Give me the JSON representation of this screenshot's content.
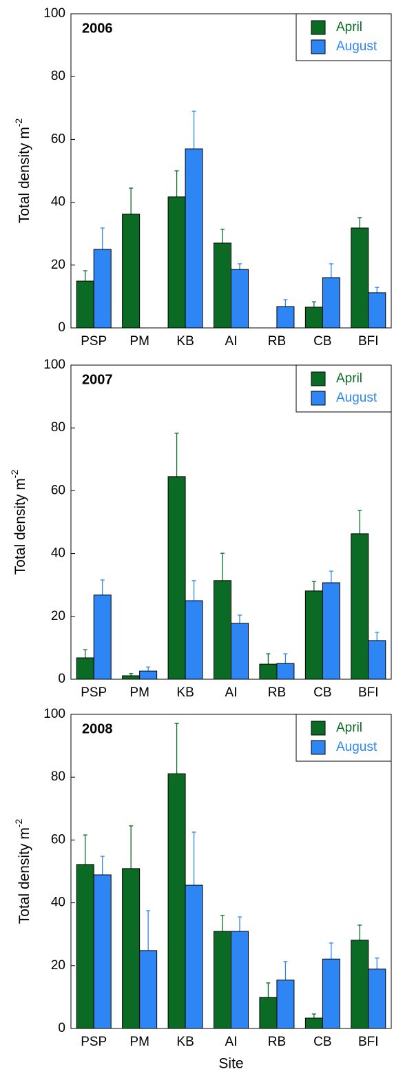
{
  "chart_data": [
    {
      "type": "bar",
      "title": "2006",
      "categories": [
        "PSP",
        "PM",
        "KB",
        "AI",
        "RB",
        "CB",
        "BFI"
      ],
      "series": [
        {
          "name": "April",
          "color": "#0b6b25",
          "values": [
            14.9,
            36.2,
            41.7,
            27,
            null,
            6.6,
            31.8
          ],
          "errors": [
            3.3,
            8.3,
            8.3,
            4.4,
            null,
            1.7,
            3.3
          ]
        },
        {
          "name": "August",
          "color": "#2e86f5",
          "values": [
            25,
            null,
            57,
            18.6,
            6.8,
            16,
            11.2
          ],
          "errors": [
            6.8,
            null,
            12,
            1.8,
            2.2,
            4.4,
            1.7
          ]
        }
      ],
      "ylim": [
        0,
        100
      ],
      "yticks": [
        0,
        20,
        40,
        60,
        80,
        100
      ],
      "ylabel": "Total density m",
      "ylabel_sup": "-2",
      "legend": "upper right"
    },
    {
      "type": "bar",
      "title": "2007",
      "categories": [
        "PSP",
        "PM",
        "KB",
        "AI",
        "RB",
        "CB",
        "BFI"
      ],
      "series": [
        {
          "name": "April",
          "color": "#0b6b25",
          "values": [
            6.8,
            1.1,
            64.5,
            31.4,
            4.8,
            28.1,
            46.3
          ],
          "errors": [
            2.6,
            0.7,
            13.8,
            8.7,
            3.3,
            3,
            7.4
          ]
        },
        {
          "name": "August",
          "color": "#2e86f5",
          "values": [
            26.8,
            2.6,
            25,
            17.8,
            5,
            30.7,
            12.3
          ],
          "errors": [
            4.8,
            1.3,
            6.4,
            2.6,
            3.1,
            3.7,
            2.6
          ]
        }
      ],
      "ylim": [
        0,
        100
      ],
      "yticks": [
        0,
        20,
        40,
        60,
        80,
        100
      ],
      "ylabel": "Total density m",
      "ylabel_sup": "-2",
      "legend": "upper right"
    },
    {
      "type": "bar",
      "title": "2008",
      "categories": [
        "PSP",
        "PM",
        "KB",
        "AI",
        "RB",
        "CB",
        "BFI"
      ],
      "series": [
        {
          "name": "April",
          "color": "#0b6b25",
          "values": [
            52.2,
            50.9,
            81.1,
            30.9,
            9.9,
            3.3,
            28.1
          ],
          "errors": [
            9.4,
            13.6,
            16,
            5.1,
            4.6,
            1.3,
            4.8
          ]
        },
        {
          "name": "August",
          "color": "#2e86f5",
          "values": [
            48.9,
            24.8,
            45.6,
            30.9,
            15.4,
            22.1,
            18.9
          ],
          "errors": [
            5.9,
            12.7,
            16.9,
            4.6,
            5.9,
            5.1,
            3.5
          ]
        }
      ],
      "ylim": [
        0,
        100
      ],
      "yticks": [
        0,
        20,
        40,
        60,
        80,
        100
      ],
      "ylabel": "Total density m",
      "ylabel_sup": "-2",
      "legend": "upper right",
      "xlabel": "Site"
    }
  ]
}
